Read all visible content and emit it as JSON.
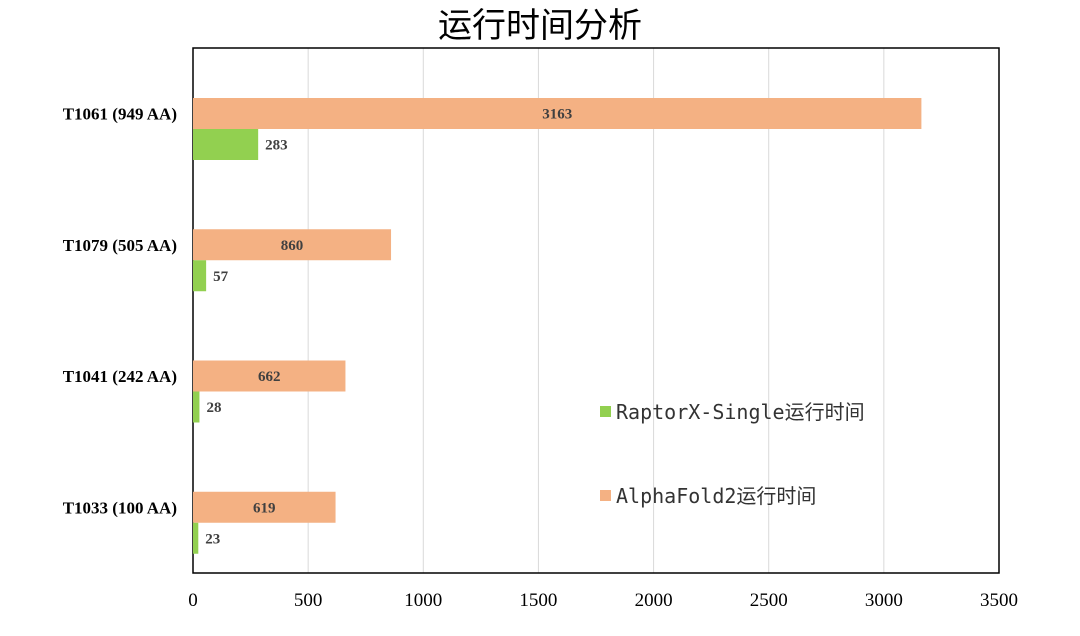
{
  "chart_data": {
    "type": "bar",
    "orientation": "horizontal",
    "title": "运行时间分析",
    "xlabel": "",
    "ylabel": "",
    "categories": [
      "T1061 (949 AA)",
      "T1079 (505 AA)",
      "T1041 (242 AA)",
      "T1033 (100 AA)"
    ],
    "series": [
      {
        "name": "AlphaFold2运行时间",
        "color": "#F4B183",
        "values": [
          3163,
          860,
          662,
          619
        ]
      },
      {
        "name": "RaptorX-Single运行时间",
        "color": "#92D050",
        "values": [
          283,
          57,
          28,
          23
        ]
      }
    ],
    "xlim": [
      0,
      3500
    ],
    "xticks": [
      0,
      500,
      1000,
      1500,
      2000,
      2500,
      3000,
      3500
    ],
    "legend_order": [
      "RaptorX-Single运行时间",
      "AlphaFold2运行时间"
    ],
    "legend_position": "right",
    "grid": true
  }
}
